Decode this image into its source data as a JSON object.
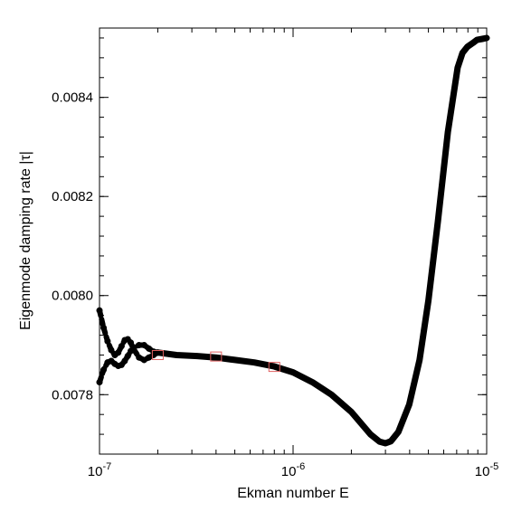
{
  "chart_data": {
    "type": "scatter",
    "xlabel": "Ekman number E",
    "ylabel": "Eigenmode damping rate |τ|",
    "x_scale": "log",
    "xlim": [
      1e-07,
      1e-05
    ],
    "ylim": [
      0.00768,
      0.00854
    ],
    "x_ticks": [
      {
        "value": 1e-07,
        "base": "10",
        "exp": "-7"
      },
      {
        "value": 1e-06,
        "base": "10",
        "exp": "-6"
      },
      {
        "value": 1e-05,
        "base": "10",
        "exp": "-5"
      }
    ],
    "y_ticks": [
      {
        "value": 0.0078,
        "label": "0.0078"
      },
      {
        "value": 0.008,
        "label": "0.0080"
      },
      {
        "value": 0.0082,
        "label": "0.0082"
      },
      {
        "value": 0.0084,
        "label": "0.0084"
      }
    ],
    "grid": false,
    "series": [
      {
        "style": "thick-dots",
        "color": "#000000",
        "x": [
          2e-07,
          2.5e-07,
          3.2e-07,
          4e-07,
          5e-07,
          6.3e-07,
          8e-07,
          1e-06,
          1.26e-06,
          1.58e-06,
          2e-06,
          2.51e-06,
          2.8e-06,
          3e-06,
          3.2e-06,
          3.5e-06,
          3.98e-06,
          4.5e-06,
          5e-06,
          5.6e-06,
          6.3e-06,
          7.08e-06,
          7.5e-06,
          7.94e-06,
          8.5e-06,
          8.91e-06,
          9.5e-06,
          1e-05
        ],
        "y": [
          0.007885,
          0.00788,
          0.007878,
          0.007875,
          0.00787,
          0.007865,
          0.007857,
          0.007845,
          0.007825,
          0.0078,
          0.007765,
          0.00772,
          0.007705,
          0.007702,
          0.007706,
          0.007725,
          0.00778,
          0.00787,
          0.00799,
          0.00815,
          0.00833,
          0.00846,
          0.00849,
          0.008502,
          0.00851,
          0.008516,
          0.008518,
          0.00852
        ]
      },
      {
        "style": "dots",
        "color": "#000000",
        "x": [
          1e-07,
          1.05e-07,
          1.1e-07,
          1.15e-07,
          1.2e-07,
          1.25e-07,
          1.3e-07,
          1.35e-07,
          1.4e-07,
          1.45e-07,
          1.5e-07,
          1.6e-07,
          1.7e-07,
          1.8e-07,
          1.9e-07,
          2e-07
        ],
        "y": [
          0.007825,
          0.00785,
          0.007865,
          0.007868,
          0.007862,
          0.007858,
          0.00786,
          0.007868,
          0.007878,
          0.007888,
          0.007895,
          0.0079,
          0.0079,
          0.007893,
          0.007887,
          0.007885
        ]
      },
      {
        "style": "dots",
        "color": "#000000",
        "x": [
          1e-07,
          1.05e-07,
          1.1e-07,
          1.15e-07,
          1.2e-07,
          1.25e-07,
          1.3e-07,
          1.35e-07,
          1.4e-07,
          1.45e-07,
          1.5e-07,
          1.6e-07,
          1.7e-07,
          1.8e-07,
          1.9e-07,
          2e-07
        ],
        "y": [
          0.00797,
          0.007935,
          0.007908,
          0.00789,
          0.00788,
          0.007885,
          0.007898,
          0.00791,
          0.007912,
          0.007905,
          0.007892,
          0.007875,
          0.00787,
          0.007875,
          0.00788,
          0.007885
        ]
      }
    ],
    "markers": {
      "shape": "square",
      "color": "#e06060",
      "x": [
        2e-07,
        4e-07,
        8e-07
      ],
      "y": [
        0.00788,
        0.007877,
        0.007856
      ]
    }
  }
}
